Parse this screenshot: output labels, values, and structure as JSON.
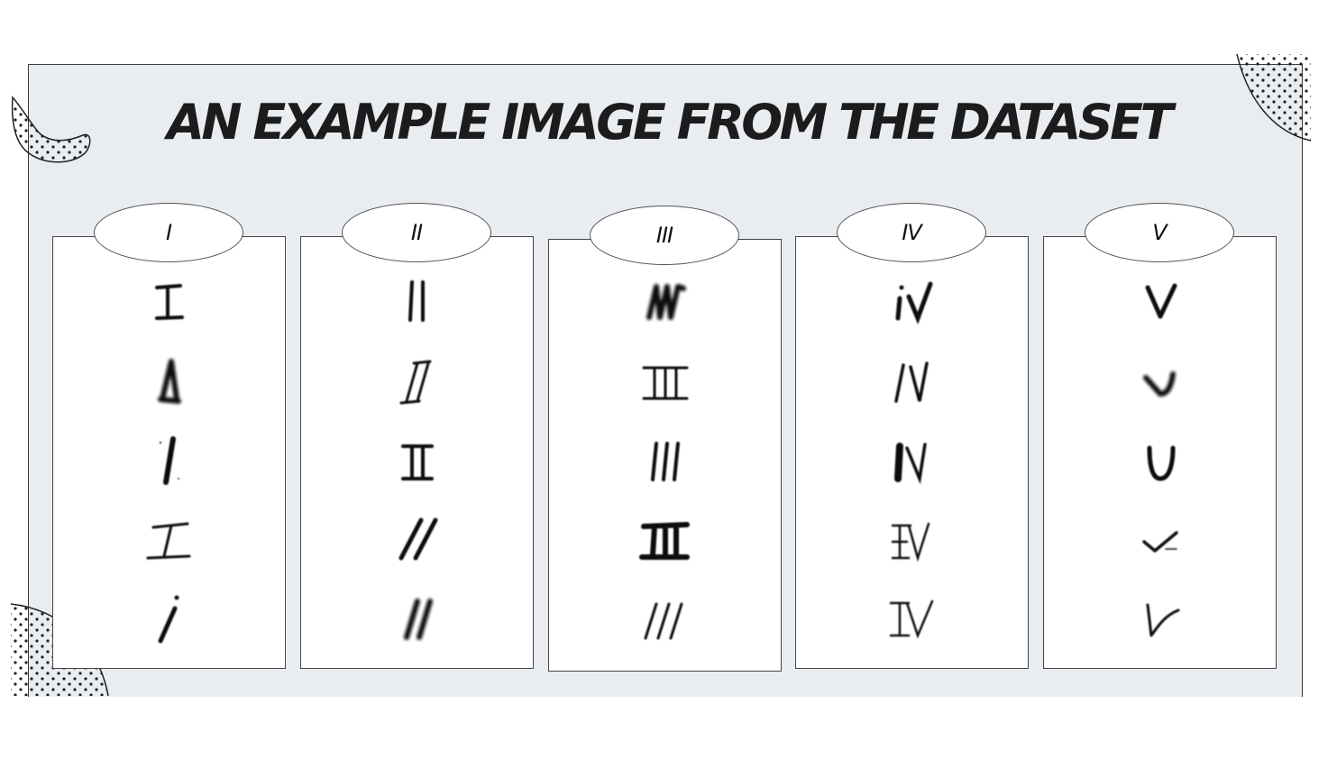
{
  "title": "AN EXAMPLE IMAGE FROM THE DATASET",
  "colors": {
    "panel_background": "#e9ecf0",
    "ink": "#1c1c1c",
    "card_background": "#ffffff"
  },
  "columns": [
    {
      "label": "I",
      "sample_count": 5
    },
    {
      "label": "II",
      "sample_count": 5
    },
    {
      "label": "III",
      "sample_count": 5
    },
    {
      "label": "IV",
      "sample_count": 5
    },
    {
      "label": "V",
      "sample_count": 5
    }
  ],
  "decorations": [
    "dotted-squiggle",
    "dotted-corner-arc",
    "dotted-quarter-circle"
  ]
}
